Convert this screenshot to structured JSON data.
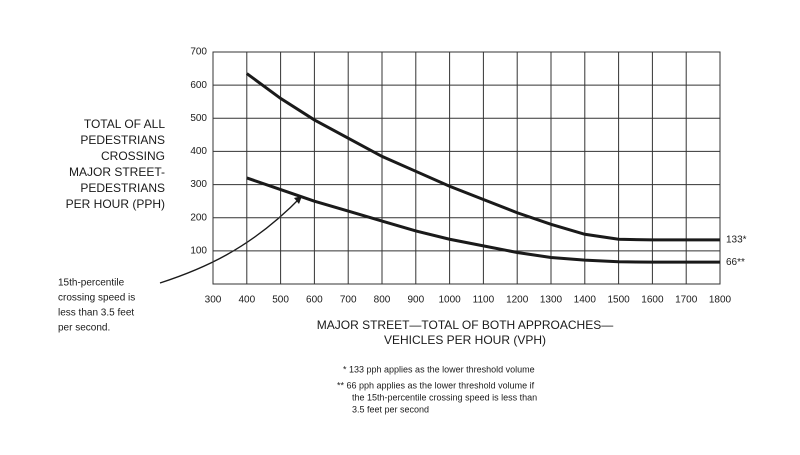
{
  "chart_data": {
    "type": "line",
    "y_label": [
      "TOTAL OF ALL",
      "PEDESTRIANS",
      "CROSSING",
      "MAJOR STREET-",
      "PEDESTRIANS",
      "PER HOUR (PPH)"
    ],
    "x_label": [
      "MAJOR STREET—TOTAL OF BOTH APPROACHES—",
      "VEHICLES PER HOUR (VPH)"
    ],
    "annotation": [
      "15th-percentile",
      "crossing speed is",
      "less than 3.5 feet",
      "per second."
    ],
    "footnotes": [
      "*  133 pph applies as the lower threshold volume",
      "**  66 pph applies as the lower threshold volume if",
      "the 15th-percentile crossing speed is less than",
      "3.5 feet per second"
    ],
    "x": [
      400,
      500,
      600,
      700,
      800,
      900,
      1000,
      1100,
      1200,
      1300,
      1400,
      1500,
      1600,
      1700,
      1800
    ],
    "series": [
      {
        "name": "133*",
        "color": "#1a1a1a",
        "values": [
          635,
          560,
          495,
          440,
          385,
          340,
          295,
          255,
          215,
          180,
          150,
          135,
          133,
          133,
          133
        ]
      },
      {
        "name": "66**",
        "color": "#1a1a1a",
        "values": [
          320,
          285,
          250,
          220,
          190,
          160,
          135,
          115,
          95,
          80,
          72,
          67,
          66,
          66,
          66
        ]
      }
    ],
    "xlim": [
      300,
      1800
    ],
    "ylim": [
      0,
      700
    ],
    "xticks": [
      300,
      400,
      500,
      600,
      700,
      800,
      900,
      1000,
      1100,
      1200,
      1300,
      1400,
      1500,
      1600,
      1700,
      1800
    ],
    "yticks": [
      100,
      200,
      300,
      400,
      500,
      600,
      700
    ],
    "grid": true
  }
}
